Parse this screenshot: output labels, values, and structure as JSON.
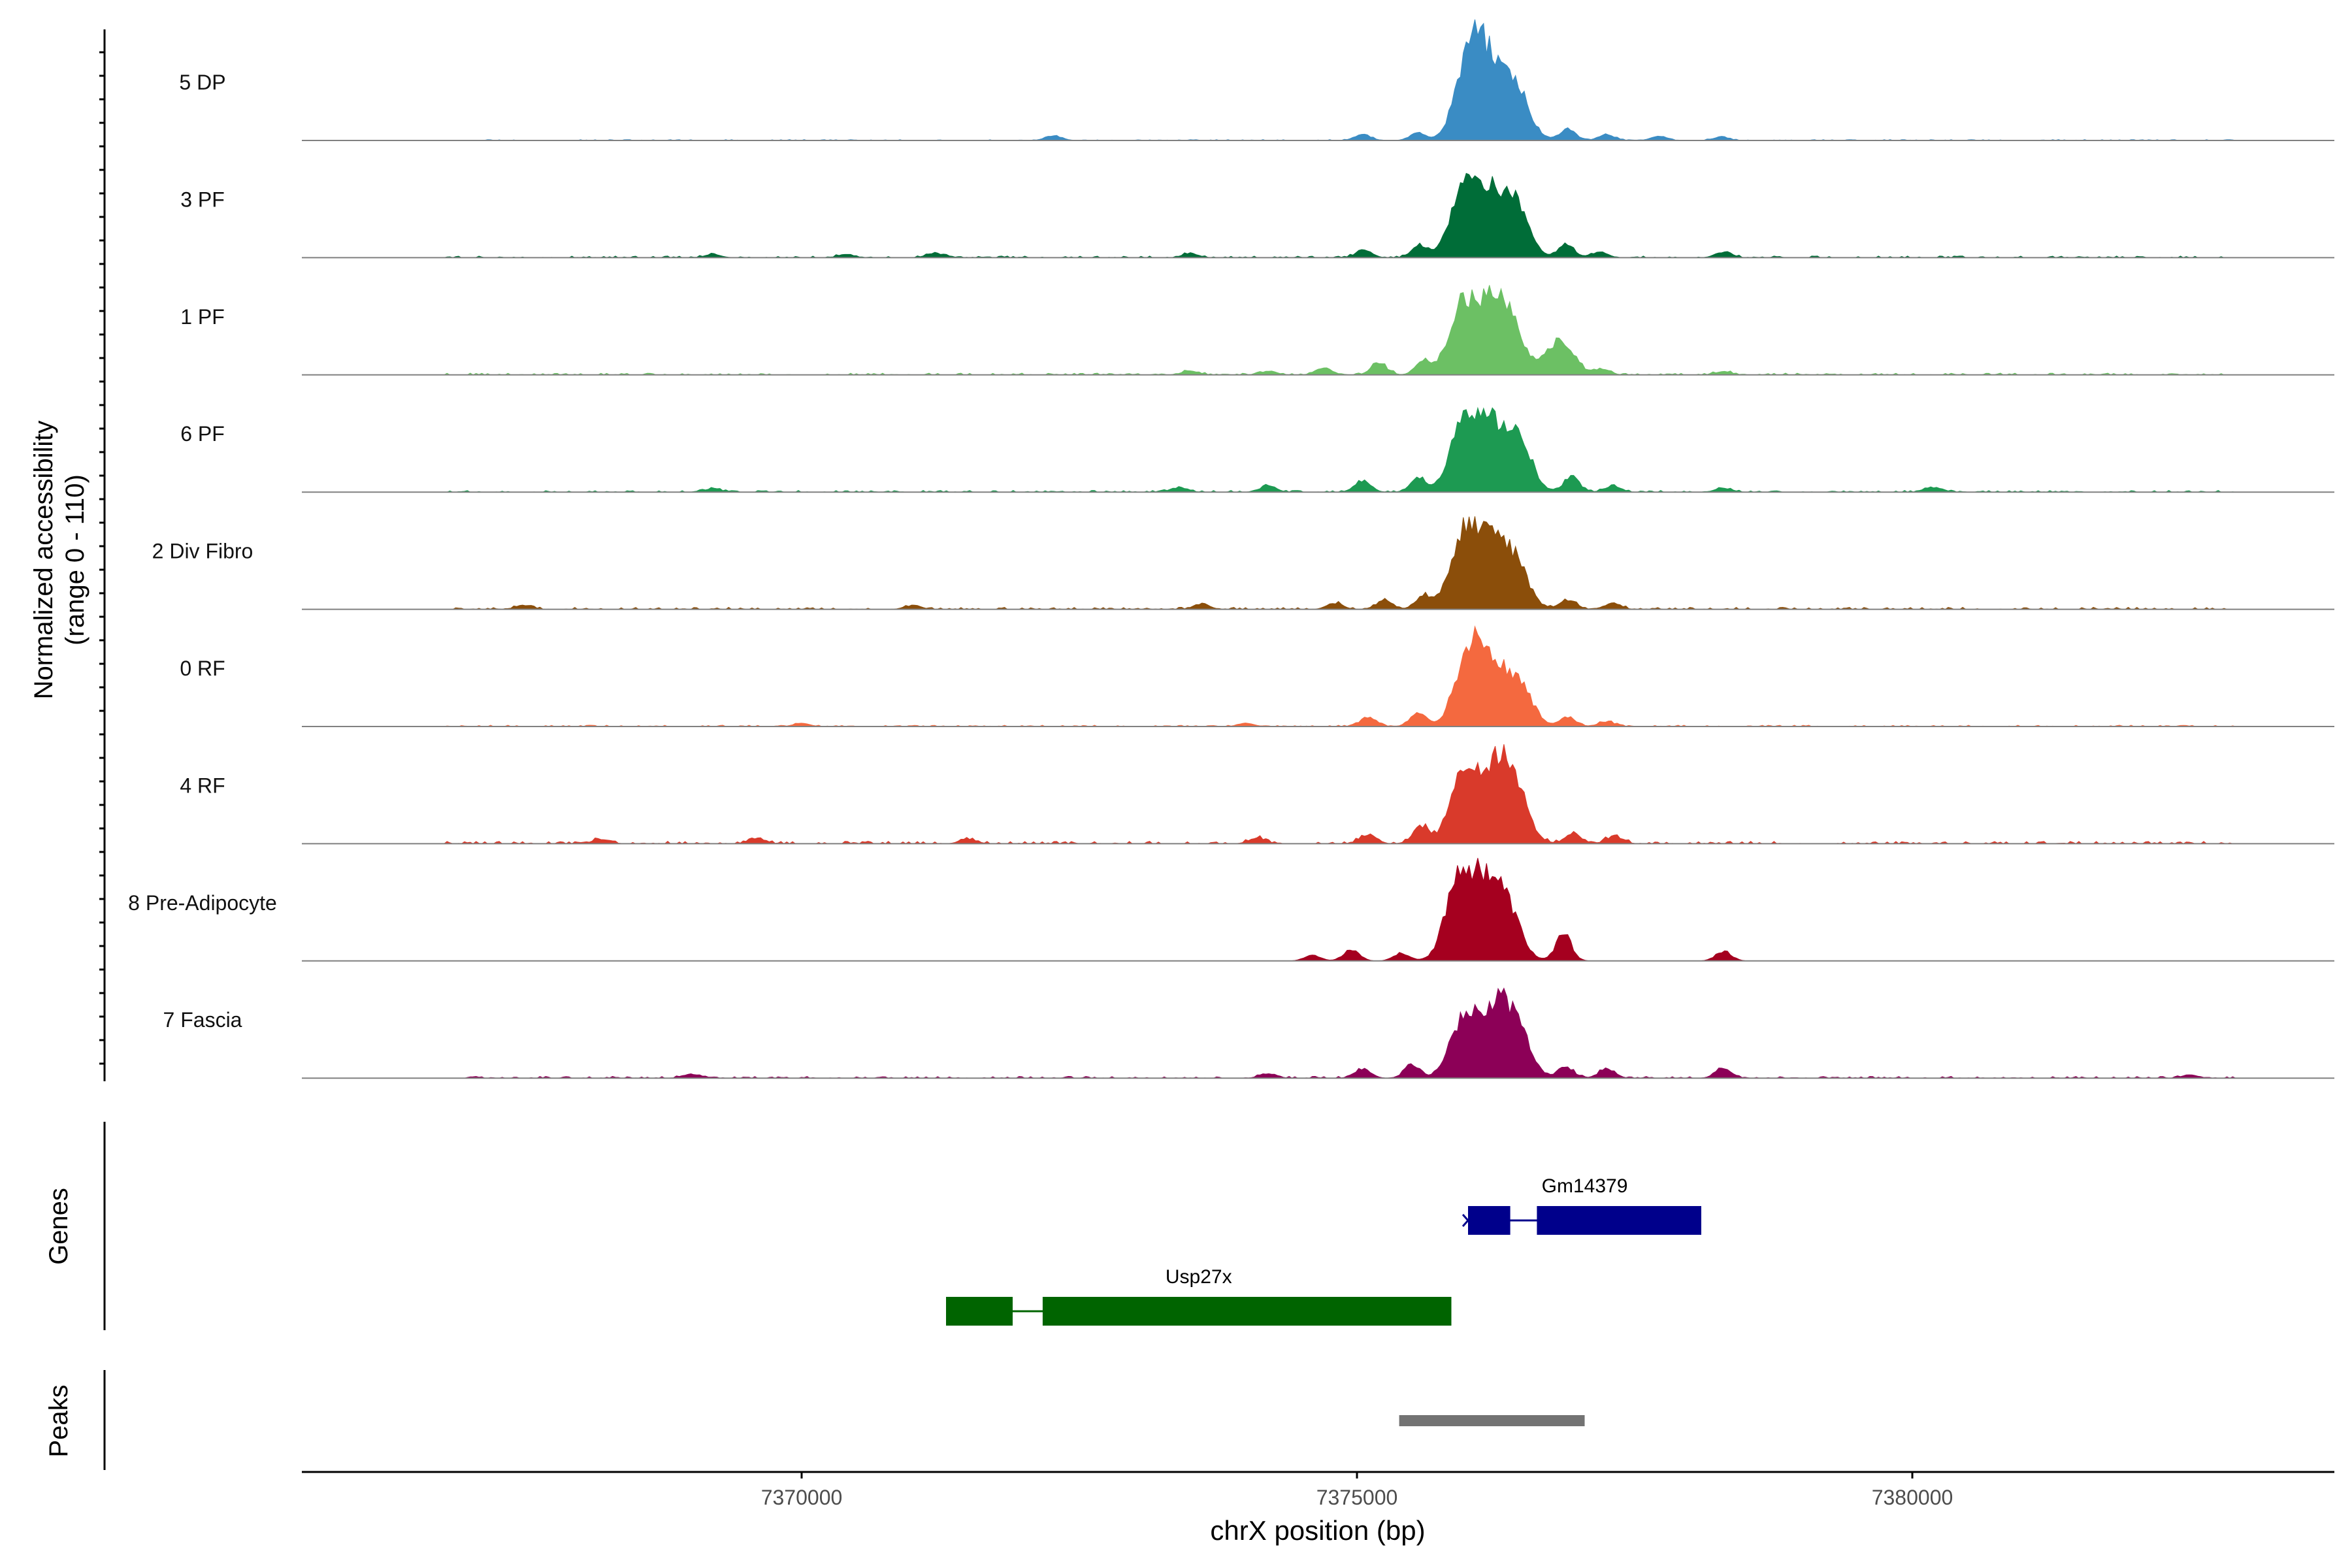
{
  "chart_data": {
    "type": "area",
    "title": "",
    "chromosome": "chrX",
    "xlim": [
      7365500,
      7383800
    ],
    "xlabel": "chrX position (bp)",
    "xticks": [
      7370000,
      7375000,
      7380000
    ],
    "xtick_labels": [
      "7370000",
      "7375000",
      "7380000"
    ],
    "ylabel_line1": "Normalized accessibility",
    "ylabel_line2": "(range 0 - 110)",
    "ylim": [
      0,
      110
    ],
    "grid": false,
    "tracks": [
      {
        "name": "5 DP",
        "color": "#3a8cc4",
        "main_peaks": [
          [
            7376000,
            78
          ],
          [
            7376170,
            66
          ],
          [
            7376420,
            58
          ]
        ],
        "side_peaks": [
          [
            7375050,
            6
          ],
          [
            7375550,
            8
          ],
          [
            7376900,
            12
          ],
          [
            7377250,
            6
          ],
          [
            7372270,
            5
          ],
          [
            7377720,
            4
          ],
          [
            7378280,
            3
          ]
        ],
        "noise": 0.8
      },
      {
        "name": "3 PF",
        "color": "#006d38",
        "main_peaks": [
          [
            7375950,
            62
          ],
          [
            7376180,
            62
          ],
          [
            7376430,
            52
          ]
        ],
        "side_peaks": [
          [
            7375060,
            8
          ],
          [
            7375560,
            12
          ],
          [
            7376880,
            14
          ],
          [
            7377180,
            6
          ],
          [
            7378300,
            6
          ],
          [
            7371200,
            5
          ],
          [
            7370400,
            3
          ],
          [
            7373500,
            4
          ],
          [
            7369200,
            3
          ]
        ],
        "noise": 1.5
      },
      {
        "name": "1 PF",
        "color": "#6cc064",
        "main_peaks": [
          [
            7375950,
            70
          ],
          [
            7376200,
            58
          ],
          [
            7376380,
            50
          ],
          [
            7376830,
            36
          ]
        ],
        "side_peaks": [
          [
            7375200,
            12
          ],
          [
            7375600,
            14
          ],
          [
            7377200,
            6
          ],
          [
            7374700,
            7
          ],
          [
            7374200,
            4
          ],
          [
            7373500,
            4
          ],
          [
            7378300,
            3
          ]
        ],
        "noise": 1.6
      },
      {
        "name": "6 PF",
        "color": "#1d9a52",
        "main_peaks": [
          [
            7375950,
            64
          ],
          [
            7376180,
            64
          ],
          [
            7376440,
            60
          ]
        ],
        "side_peaks": [
          [
            7375050,
            12
          ],
          [
            7375550,
            14
          ],
          [
            7376930,
            16
          ],
          [
            7377300,
            6
          ],
          [
            7374200,
            6
          ],
          [
            7373400,
            5
          ],
          [
            7380200,
            5
          ],
          [
            7378300,
            4
          ],
          [
            7369200,
            3
          ]
        ],
        "noise": 1.5
      },
      {
        "name": "2 Div Fibro",
        "color": "#8b4e0a",
        "main_peaks": [
          [
            7375960,
            76
          ],
          [
            7376200,
            60
          ],
          [
            7376420,
            48
          ]
        ],
        "side_peaks": [
          [
            7375250,
            10
          ],
          [
            7375600,
            14
          ],
          [
            7376900,
            10
          ],
          [
            7377300,
            6
          ],
          [
            7374800,
            6
          ],
          [
            7373600,
            5
          ],
          [
            7371000,
            4
          ],
          [
            7367500,
            4
          ]
        ],
        "noise": 1.8
      },
      {
        "name": "0 RF",
        "color": "#f4693f",
        "main_peaks": [
          [
            7376000,
            72
          ],
          [
            7376200,
            56
          ],
          [
            7376450,
            46
          ]
        ],
        "side_peaks": [
          [
            7375100,
            10
          ],
          [
            7375550,
            14
          ],
          [
            7376900,
            10
          ],
          [
            7377250,
            5
          ],
          [
            7374000,
            3
          ],
          [
            7370000,
            3
          ]
        ],
        "noise": 1.2
      },
      {
        "name": "4 RF",
        "color": "#d93a2b",
        "main_peaks": [
          [
            7375960,
            72
          ],
          [
            7376230,
            68
          ],
          [
            7376420,
            54
          ]
        ],
        "side_peaks": [
          [
            7375100,
            10
          ],
          [
            7375580,
            18
          ],
          [
            7376950,
            10
          ],
          [
            7377320,
            8
          ],
          [
            7374100,
            6
          ],
          [
            7371500,
            5
          ],
          [
            7369600,
            6
          ],
          [
            7368200,
            5
          ]
        ],
        "noise": 2.2
      },
      {
        "name": "8 Pre-Adipocyte",
        "color": "#a5001f",
        "main_peaks": [
          [
            7375920,
            86
          ],
          [
            7376160,
            70
          ],
          [
            7376360,
            48
          ]
        ],
        "side_peaks": [
          [
            7376860,
            28
          ],
          [
            7374950,
            12
          ],
          [
            7375400,
            8
          ],
          [
            7378300,
            10
          ],
          [
            7374600,
            6
          ]
        ],
        "noise": 0.0
      },
      {
        "name": "7 Fascia",
        "color": "#8c0057",
        "main_peaks": [
          [
            7375960,
            60
          ],
          [
            7376220,
            62
          ],
          [
            7376430,
            54
          ]
        ],
        "side_peaks": [
          [
            7375050,
            10
          ],
          [
            7375500,
            14
          ],
          [
            7376880,
            12
          ],
          [
            7377250,
            10
          ],
          [
            7378300,
            10
          ],
          [
            7374200,
            5
          ],
          [
            7369000,
            4
          ],
          [
            7382500,
            3
          ]
        ],
        "noise": 1.6
      }
    ],
    "genes_track_label": "Genes",
    "genes": [
      {
        "name": "Gm14379",
        "color": "#00008b",
        "strand": "-",
        "start": 7376000,
        "end": 7378100,
        "exons": [
          [
            7376000,
            7376380
          ],
          [
            7376620,
            7378100
          ]
        ]
      },
      {
        "name": "Usp27x",
        "color": "#006400",
        "strand": "-",
        "start": 7371300,
        "end": 7375850,
        "exons": [
          [
            7371300,
            7371900
          ],
          [
            7372170,
            7375850
          ]
        ]
      }
    ],
    "peaks_track_label": "Peaks",
    "peaks": [
      {
        "start": 7375380,
        "end": 7377050,
        "color": "#737373"
      }
    ]
  }
}
